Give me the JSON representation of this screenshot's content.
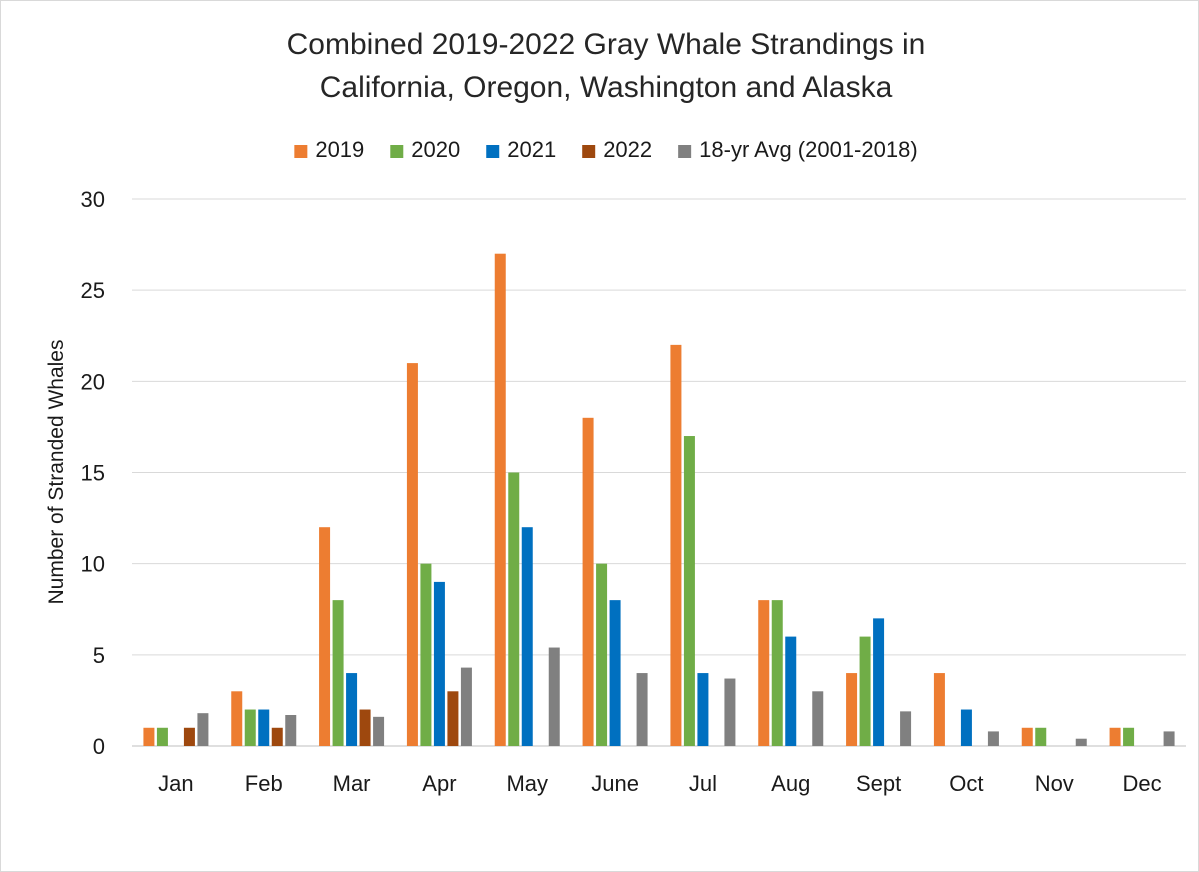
{
  "chart_data": {
    "type": "bar",
    "title_lines": [
      "Combined 2019-2022 Gray Whale Strandings in",
      "California, Oregon, Washington and Alaska"
    ],
    "xlabel": "",
    "ylabel": "Number of Stranded Whales",
    "ylim": [
      0,
      30
    ],
    "yticks": [
      0,
      5,
      10,
      15,
      20,
      25,
      30
    ],
    "grid": "horizontal",
    "legend_position": "top",
    "categories": [
      "Jan",
      "Feb",
      "Mar",
      "Apr",
      "May",
      "June",
      "Jul",
      "Aug",
      "Sept",
      "Oct",
      "Nov",
      "Dec"
    ],
    "series": [
      {
        "name": "2019",
        "color": "#ED7D31",
        "values": [
          1,
          3,
          12,
          21,
          27,
          18,
          22,
          8,
          4,
          4,
          1,
          1
        ]
      },
      {
        "name": "2020",
        "color": "#70AD47",
        "values": [
          1,
          2,
          8,
          10,
          15,
          10,
          17,
          8,
          6,
          0,
          1,
          1
        ]
      },
      {
        "name": "2021",
        "color": "#0070C0",
        "values": [
          0,
          2,
          4,
          9,
          12,
          8,
          4,
          6,
          7,
          2,
          0,
          0
        ]
      },
      {
        "name": "2022",
        "color": "#9E480E",
        "values": [
          1,
          1,
          2,
          3,
          0,
          0,
          0,
          0,
          0,
          0,
          0,
          0
        ]
      },
      {
        "name": "18-yr Avg (2001-2018)",
        "color": "#808080",
        "values": [
          1.8,
          1.7,
          1.6,
          4.3,
          5.4,
          4.0,
          3.7,
          3.0,
          1.9,
          0.8,
          0.4,
          0.8
        ]
      }
    ]
  }
}
